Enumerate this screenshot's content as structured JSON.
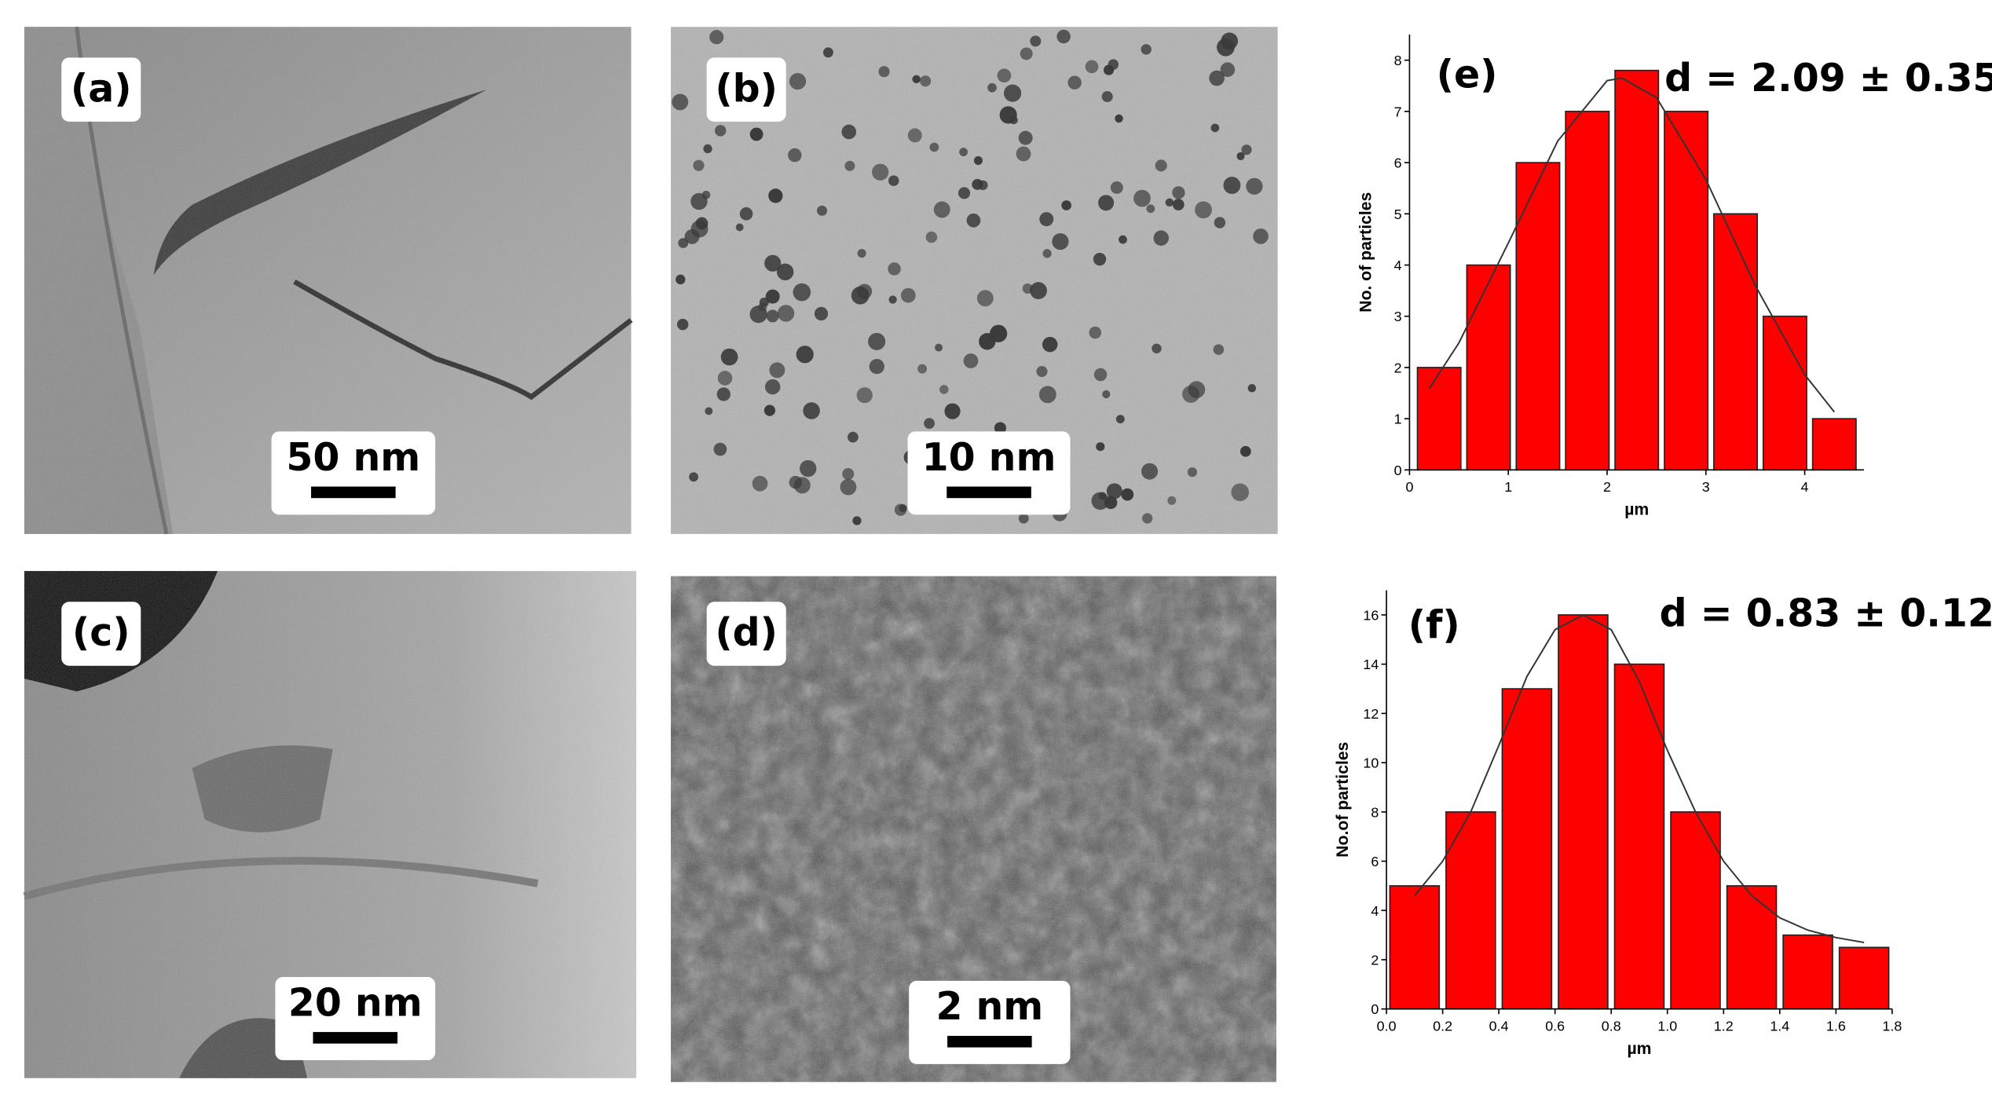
{
  "panels": [
    {
      "label": "(a)",
      "scale_bar": "50 nm"
    },
    {
      "label": "(b)",
      "scale_bar": "10 nm"
    },
    {
      "label": "(c)",
      "scale_bar": "20 nm"
    },
    {
      "label": "(d)",
      "scale_bar": "2 nm"
    }
  ],
  "chart_data": [
    {
      "type": "histogram",
      "panel_label": "(e)",
      "annotation": "d = 2.09 ± 0.35",
      "xlabel": "µm",
      "ylabel": "No. of particles",
      "color": "#ff0000",
      "bins": [
        0.05,
        0.55,
        1.05,
        1.55,
        2.05,
        2.55,
        3.05,
        3.55,
        4.05,
        4.55
      ],
      "values": [
        2,
        4,
        6,
        7,
        7.8,
        7,
        5,
        3,
        1
      ],
      "fit": {
        "x": [
          0.2,
          0.5,
          1,
          1.5,
          2,
          2.15,
          2.5,
          3,
          3.5,
          4,
          4.3
        ],
        "values": [
          1.59,
          2.48,
          4.43,
          6.42,
          7.6,
          7.65,
          7.27,
          5.67,
          3.6,
          1.86,
          1.13
        ]
      },
      "xlim": [
        0,
        4.6
      ],
      "ylim": [
        0,
        8.5
      ],
      "xticks": [
        0,
        1,
        2,
        3,
        4
      ],
      "yticks": [
        0,
        1,
        2,
        3,
        4,
        5,
        6,
        7,
        8
      ]
    },
    {
      "type": "histogram",
      "panel_label": "(f)",
      "annotation": "d = 0.83 ± 0.12",
      "xlabel": "µm",
      "ylabel": "No.of particles",
      "color": "#ff0000",
      "bins": [
        0,
        0.2,
        0.4,
        0.6,
        0.8,
        1.0,
        1.2,
        1.4,
        1.6,
        1.8
      ],
      "values": [
        5,
        8,
        13,
        16,
        14,
        8,
        5,
        3,
        2.5
      ],
      "fit": {
        "x": [
          0.1,
          0.2,
          0.3,
          0.4,
          0.5,
          0.6,
          0.7,
          0.8,
          0.9,
          1.0,
          1.1,
          1.2,
          1.3,
          1.4,
          1.5,
          1.6,
          1.7
        ],
        "values": [
          4.6,
          6,
          8,
          10.7,
          13.5,
          15.4,
          16,
          15.4,
          13.3,
          10.5,
          8,
          6,
          4.6,
          3.7,
          3.2,
          2.9,
          2.7
        ]
      },
      "xlim": [
        0,
        1.8
      ],
      "ylim": [
        0,
        17
      ],
      "xticks": [
        {
          "value": 0,
          "label": "0.0"
        },
        {
          "value": 0.2,
          "label": "0.2"
        },
        {
          "value": 0.4,
          "label": "0.4"
        },
        {
          "value": 0.6,
          "label": "0.6"
        },
        {
          "value": 0.8,
          "label": "0.8"
        },
        {
          "value": 1.0,
          "label": "1.0"
        },
        {
          "value": 1.2,
          "label": "1.2"
        },
        {
          "value": 1.4,
          "label": "1.4"
        },
        {
          "value": 1.6,
          "label": "1.6"
        },
        {
          "value": 1.8,
          "label": "1.8"
        }
      ],
      "yticks": [
        0,
        2,
        4,
        6,
        8,
        10,
        12,
        14,
        16
      ]
    }
  ]
}
